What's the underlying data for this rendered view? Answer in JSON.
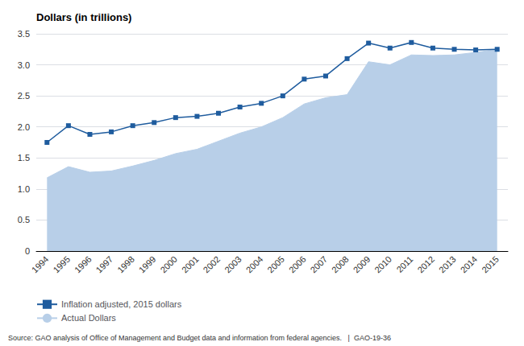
{
  "chart_data": {
    "type": "line",
    "title": "Dollars (in trillions)",
    "categories": [
      "1994",
      "1995",
      "1996",
      "1997",
      "1998",
      "1999",
      "2000",
      "2001",
      "2002",
      "2003",
      "2004",
      "2005",
      "2006",
      "2007",
      "2008",
      "2009",
      "2010",
      "2011",
      "2012",
      "2013",
      "2014",
      "2015"
    ],
    "series": [
      {
        "name": "Inflation adjusted, 2015 dollars",
        "type": "line",
        "color": "#1f5c9e",
        "marker": "square",
        "values": [
          1.75,
          2.02,
          1.88,
          1.92,
          2.02,
          2.07,
          2.15,
          2.17,
          2.22,
          2.32,
          2.38,
          2.5,
          2.77,
          2.82,
          3.1,
          3.35,
          3.27,
          3.36,
          3.27,
          3.25,
          3.24,
          3.25
        ]
      },
      {
        "name": "Actual Dollars",
        "type": "area",
        "color": "#b8cfe8",
        "values": [
          1.18,
          1.36,
          1.27,
          1.29,
          1.37,
          1.46,
          1.57,
          1.64,
          1.77,
          1.9,
          2.0,
          2.15,
          2.37,
          2.47,
          2.52,
          3.05,
          3.0,
          3.16,
          3.15,
          3.16,
          3.2,
          3.25
        ]
      }
    ],
    "ylim": [
      0,
      3.5
    ],
    "yticks": [
      0,
      0.5,
      {
        "value": 1.0,
        "label": "1.0"
      },
      1.5,
      {
        "value": 2.0,
        "label": "2.0"
      },
      2.5,
      {
        "value": 3.0,
        "label": "3.0"
      },
      3.5
    ],
    "grid": true,
    "legend": "lower left",
    "annotations": [
      "Source: GAO analysis of Office of Management and Budget data and information from federal agencies.   |  GAO-19-36"
    ]
  }
}
